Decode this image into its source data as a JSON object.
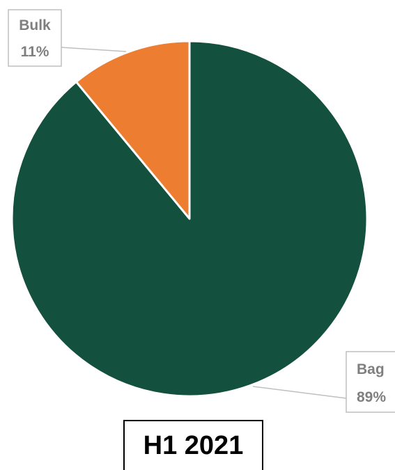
{
  "chart_data": {
    "type": "pie",
    "title": "H1 2021",
    "slices": [
      {
        "label": "Bag",
        "value": 89,
        "value_label": "89%",
        "color": "#13503d"
      },
      {
        "label": "Bulk",
        "value": 11,
        "value_label": "11%",
        "color": "#ed7d31"
      }
    ],
    "start_angle": "12 o'clock, clockwise",
    "data_labels": "callouts with leader lines"
  }
}
